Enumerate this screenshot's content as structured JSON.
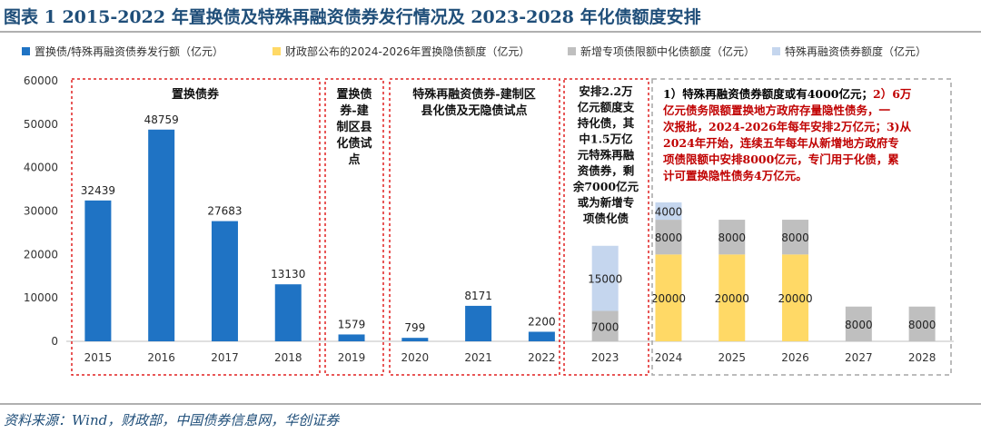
{
  "header": {
    "title": "图表 1   2015-2022 年置换债及特殊再融资债券发行情况及 2023-2028 年化债额度安排"
  },
  "footer": {
    "source": "资料来源：Wind，财政部，中国债券信息网，华创证券"
  },
  "chart_data": {
    "type": "bar",
    "stacked": true,
    "categories": [
      "2015",
      "2016",
      "2017",
      "2018",
      "2019",
      "2020",
      "2021",
      "2022",
      "2023",
      "2024",
      "2025",
      "2026",
      "2027",
      "2028"
    ],
    "ylim": [
      0,
      60000
    ],
    "yticks": [
      0,
      10000,
      20000,
      30000,
      40000,
      50000,
      60000
    ],
    "legend_position": "top",
    "series": [
      {
        "name": "置换债/特殊再融资债券发行额（亿元）",
        "color": "#1f73c4",
        "values": [
          32439,
          48759,
          27683,
          13130,
          1579,
          799,
          8171,
          2200,
          0,
          0,
          0,
          0,
          0,
          0
        ],
        "labels": [
          "32439",
          "48759",
          "27683",
          "13130",
          "1579",
          "799",
          "8171",
          "2200",
          "",
          "",
          "",
          "",
          "",
          ""
        ]
      },
      {
        "name": "财政部公布的2024-2026年置换隐债额度（亿元）",
        "color": "#ffd966",
        "values": [
          0,
          0,
          0,
          0,
          0,
          0,
          0,
          0,
          0,
          20000,
          20000,
          20000,
          0,
          0
        ],
        "labels": [
          "",
          "",
          "",
          "",
          "",
          "",
          "",
          "",
          "",
          "20000",
          "20000",
          "20000",
          "",
          ""
        ]
      },
      {
        "name": "新增专项债限额中化债额度（亿元）",
        "color": "#bfbfbf",
        "values": [
          0,
          0,
          0,
          0,
          0,
          0,
          0,
          0,
          7000,
          8000,
          8000,
          8000,
          8000,
          8000
        ],
        "labels": [
          "",
          "",
          "",
          "",
          "",
          "",
          "",
          "",
          "7000",
          "8000",
          "8000",
          "8000",
          "8000",
          "8000"
        ]
      },
      {
        "name": "特殊再融资债券额度（亿元）",
        "color": "#c5d6ee",
        "values": [
          0,
          0,
          0,
          0,
          0,
          0,
          0,
          0,
          15000,
          4000,
          0,
          0,
          0,
          0
        ],
        "labels": [
          "",
          "",
          "",
          "",
          "",
          "",
          "",
          "",
          "15000",
          "4000",
          "",
          "",
          "",
          ""
        ]
      }
    ],
    "annotations": {
      "box1_title": "置换债券",
      "box2_lines": [
        "置换债",
        "券-建",
        "制区县",
        "化债试",
        "点"
      ],
      "box3_lines": [
        "特殊再融资债券-建制区",
        "县化债及无隐债试点"
      ],
      "box4_lines": [
        "安排2.2万",
        "亿元额度支",
        "持化债，其",
        "中1.5万亿",
        "元特殊再融",
        "资债券，剩",
        "余7000亿元",
        "或为新增专",
        "项债化债"
      ],
      "box5_lines": [
        {
          "segs": [
            {
              "t": "1）特殊再融资债券额度或有4000亿元；",
              "c": "#000000"
            },
            {
              "t": "2）6万",
              "c": "#c00000"
            }
          ]
        },
        {
          "segs": [
            {
              "t": "亿元债务限额置换地方政府存量隐性债务，一",
              "c": "#c00000"
            }
          ]
        },
        {
          "segs": [
            {
              "t": "次报批，2024-2026年每年安排2万亿元；",
              "c": "#c00000"
            },
            {
              "t": "3)从",
              "c": "#c00000"
            }
          ]
        },
        {
          "segs": [
            {
              "t": "2024年开始，连续五年每年从新增地方政府专",
              "c": "#c00000"
            }
          ]
        },
        {
          "segs": [
            {
              "t": "项债限额中安排8000亿元，专门用于化债，累",
              "c": "#c00000"
            }
          ]
        },
        {
          "segs": [
            {
              "t": "计可置换隐性债务4万亿元。",
              "c": "#c00000"
            }
          ]
        }
      ]
    }
  }
}
